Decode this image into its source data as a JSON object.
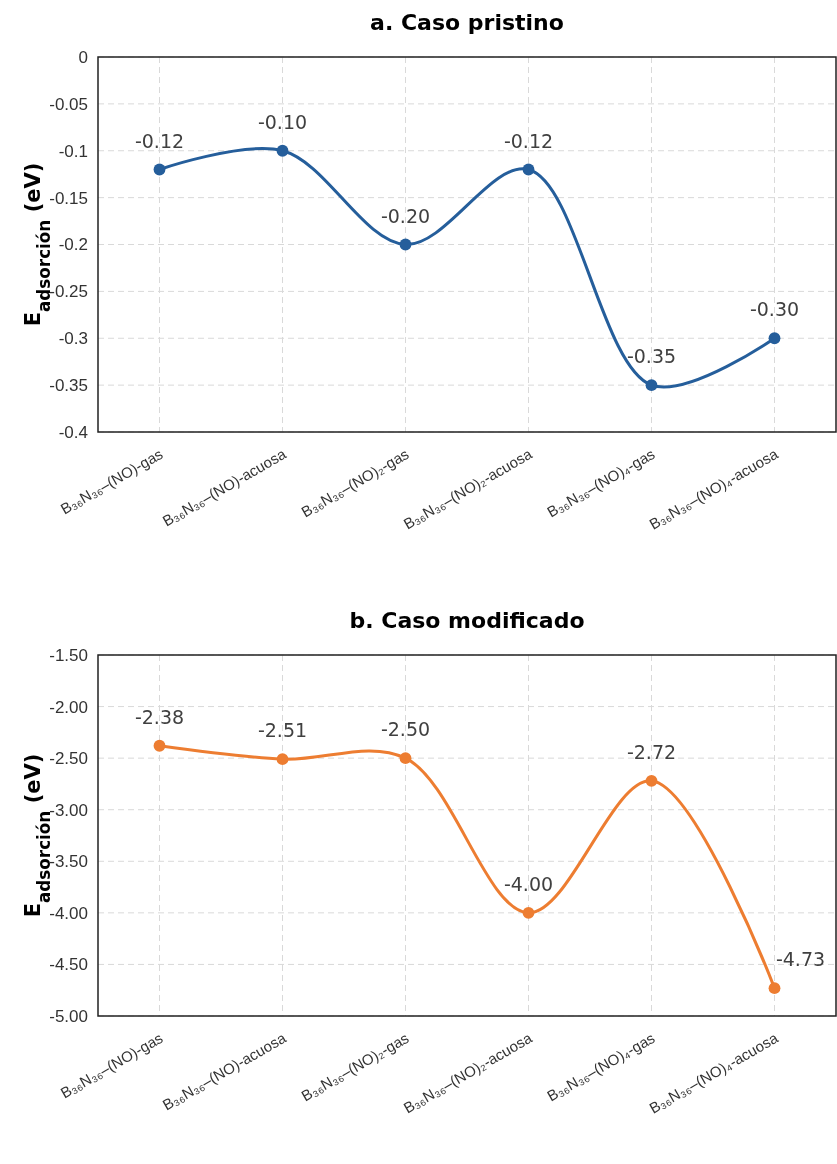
{
  "chart_data": [
    {
      "type": "line",
      "title": "a. Caso pristino",
      "ylabel": "E$_{adsorción}$ (eV)",
      "categories": [
        "B₃₆N₃₆–(NO)-gas",
        "B₃₆N₃₆–(NO)-acuosa",
        "B₃₆N₃₆–(NO)₂-gas",
        "B₃₆N₃₆–(NO)₂-acuosa",
        "B₃₆N₃₆–(NO)₄-gas",
        "B₃₆N₃₆–(NO)₄-acuosa"
      ],
      "series": [
        {
          "color": "#255e9b",
          "values": [
            -0.12,
            -0.1,
            -0.2,
            -0.12,
            -0.35,
            -0.3
          ],
          "value_labels": [
            "-0.12",
            "-0.10",
            "-0.20",
            "-0.12",
            "-0.35",
            "-0.30"
          ]
        }
      ],
      "ylim": [
        -0.4,
        0
      ],
      "yticks": [
        0,
        -0.05,
        -0.1,
        -0.15,
        -0.2,
        -0.25,
        -0.3,
        -0.35,
        -0.4
      ],
      "grid": true,
      "marker": "circle",
      "line_style": "solid"
    },
    {
      "type": "line",
      "title": "b. Caso modificado",
      "ylabel": "E$_{adsorción}$ (eV)",
      "categories": [
        "B₃₆N₃₆–(NO)-gas",
        "B₃₆N₃₆–(NO)-acuosa",
        "B₃₆N₃₆–(NO)₂-gas",
        "B₃₆N₃₆–(NO)₂-acuosa",
        "B₃₆N₃₆–(NO)₄-gas",
        "B₃₆N₃₆–(NO)₄-acuosa"
      ],
      "series": [
        {
          "color": "#ed7d31",
          "values": [
            -2.38,
            -2.51,
            -2.5,
            -4.0,
            -2.72,
            -4.73
          ],
          "value_labels": [
            "-2.38",
            "-2.51",
            "-2.50",
            "-4.00",
            "-2.72",
            "-4.73"
          ]
        }
      ],
      "ylim": [
        -5,
        -1.5
      ],
      "yticks": [
        {
          "value": -1.5,
          "label": "-1.50"
        },
        {
          "value": -2,
          "label": "-2.00"
        },
        {
          "value": -2.5,
          "label": "-2.50"
        },
        {
          "value": -3,
          "label": "-3.00"
        },
        {
          "value": -3.5,
          "label": "-3.50"
        },
        {
          "value": -4,
          "label": "-4.00"
        },
        {
          "value": -4.5,
          "label": "-4.50"
        },
        {
          "value": -5,
          "label": "-5.00"
        }
      ],
      "grid": true,
      "marker": "circle",
      "line_style": "solid"
    }
  ]
}
